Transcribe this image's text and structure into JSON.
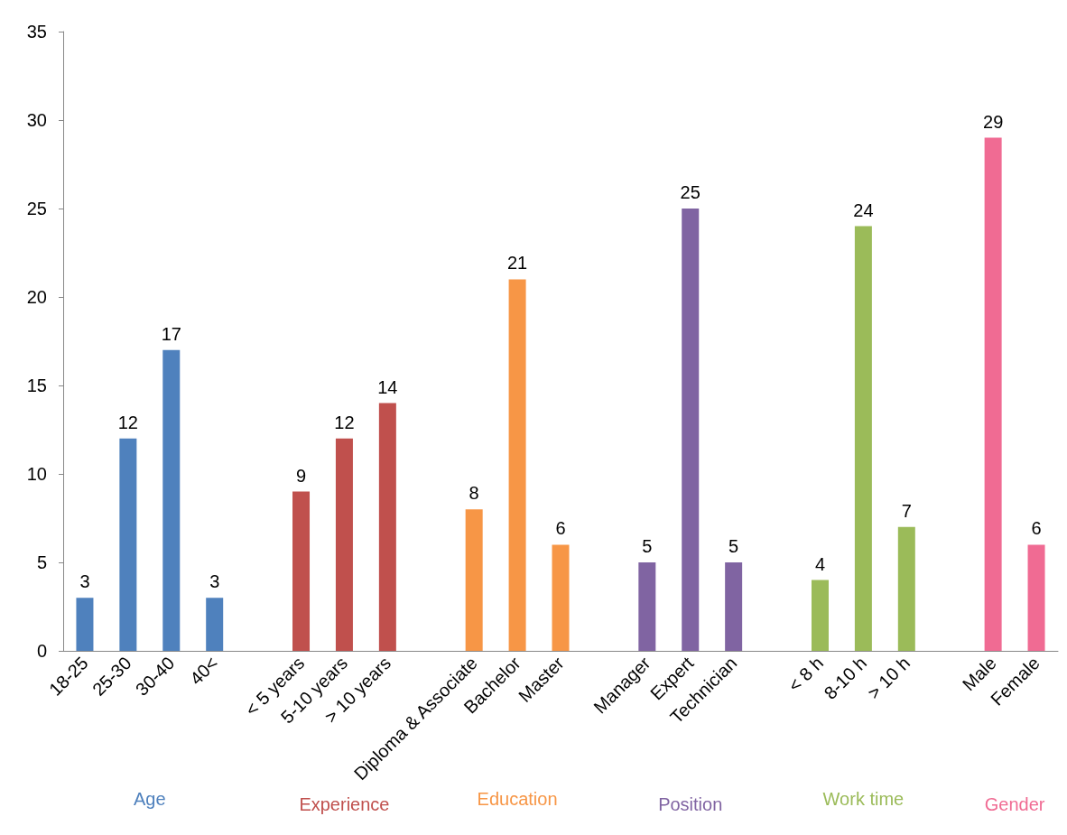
{
  "chart_data": {
    "type": "bar",
    "categories": [
      "18-25",
      "25-30",
      "30-40",
      "40<",
      null,
      "< 5 years",
      "5-10 years",
      "> 10 years",
      null,
      "Diploma & Associate",
      "Bachelor",
      "Master",
      null,
      "Manager",
      "Expert",
      "Technician",
      null,
      "< 8 h",
      "8-10 h",
      "> 10 h",
      null,
      "Male",
      "Female"
    ],
    "series": [
      {
        "name": "Age",
        "color": "#4f81bd",
        "values": [
          3,
          12,
          17,
          3,
          null,
          null,
          null,
          null,
          null,
          null,
          null,
          null,
          null,
          null,
          null,
          null,
          null,
          null,
          null,
          null,
          null,
          null,
          null
        ]
      },
      {
        "name": "Experience",
        "color": "#c0504d",
        "values": [
          null,
          null,
          null,
          null,
          null,
          9,
          12,
          14,
          null,
          null,
          null,
          null,
          null,
          null,
          null,
          null,
          null,
          null,
          null,
          null,
          null,
          null,
          null
        ]
      },
      {
        "name": "Education",
        "color": "#f79646",
        "values": [
          null,
          null,
          null,
          null,
          null,
          null,
          null,
          null,
          null,
          8,
          21,
          6,
          null,
          null,
          null,
          null,
          null,
          null,
          null,
          null,
          null,
          null,
          null
        ]
      },
      {
        "name": "Position",
        "color": "#8064a2",
        "values": [
          null,
          null,
          null,
          null,
          null,
          null,
          null,
          null,
          null,
          null,
          null,
          null,
          null,
          5,
          25,
          5,
          null,
          null,
          null,
          null,
          null,
          null,
          null
        ]
      },
      {
        "name": "Work time",
        "color": "#9bbb59",
        "values": [
          null,
          null,
          null,
          null,
          null,
          null,
          null,
          null,
          null,
          null,
          null,
          null,
          null,
          null,
          null,
          null,
          null,
          4,
          24,
          7,
          null,
          null,
          null
        ]
      },
      {
        "name": "Gender",
        "color": "#f06b93",
        "values": [
          null,
          null,
          null,
          null,
          null,
          null,
          null,
          null,
          null,
          null,
          null,
          null,
          null,
          null,
          null,
          null,
          null,
          null,
          null,
          null,
          null,
          29,
          6
        ]
      }
    ],
    "ylim": [
      0,
      35
    ],
    "yticks": [
      0,
      5,
      10,
      15,
      20,
      25,
      30,
      35
    ],
    "grid": false,
    "legend": false,
    "data_labels": true
  }
}
